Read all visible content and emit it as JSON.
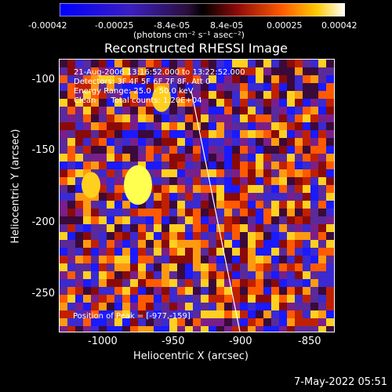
{
  "colorbar": {
    "ticks": [
      "-0.00042",
      "-0.00025",
      "-8.4e-05",
      "8.4e-05",
      "0.00025",
      "0.00042"
    ],
    "units": "(photons cm⁻² s⁻¹ asec⁻²)"
  },
  "title": "Reconstructed RHESSI Image",
  "info": {
    "line1": "21-Aug-2006 13:16:52.000 to 13:22:52.000",
    "line2": "Detectors: 3F 4F 5F 6F 7F 8F, Att 0",
    "line3": "Energy Range: 25.0 - 50.0 keV",
    "line4": "Clean      Total counts: 1.20E+04"
  },
  "peak": "Position of Peak = [-977,-159]",
  "axes": {
    "xlabel": "Heliocentric X (arcsec)",
    "ylabel": "Heliocentric Y (arcsec)",
    "xticks": [
      "-1000",
      "-950",
      "-900",
      "-850"
    ],
    "yticks": [
      "-100",
      "-150",
      "-200",
      "-250"
    ]
  },
  "timestamp": "7-May-2022 05:51",
  "colors": {
    "low": "#1b1bff",
    "mid": "#7a1fa0",
    "high": "#ff7a00",
    "peak": "#ffff40"
  }
}
